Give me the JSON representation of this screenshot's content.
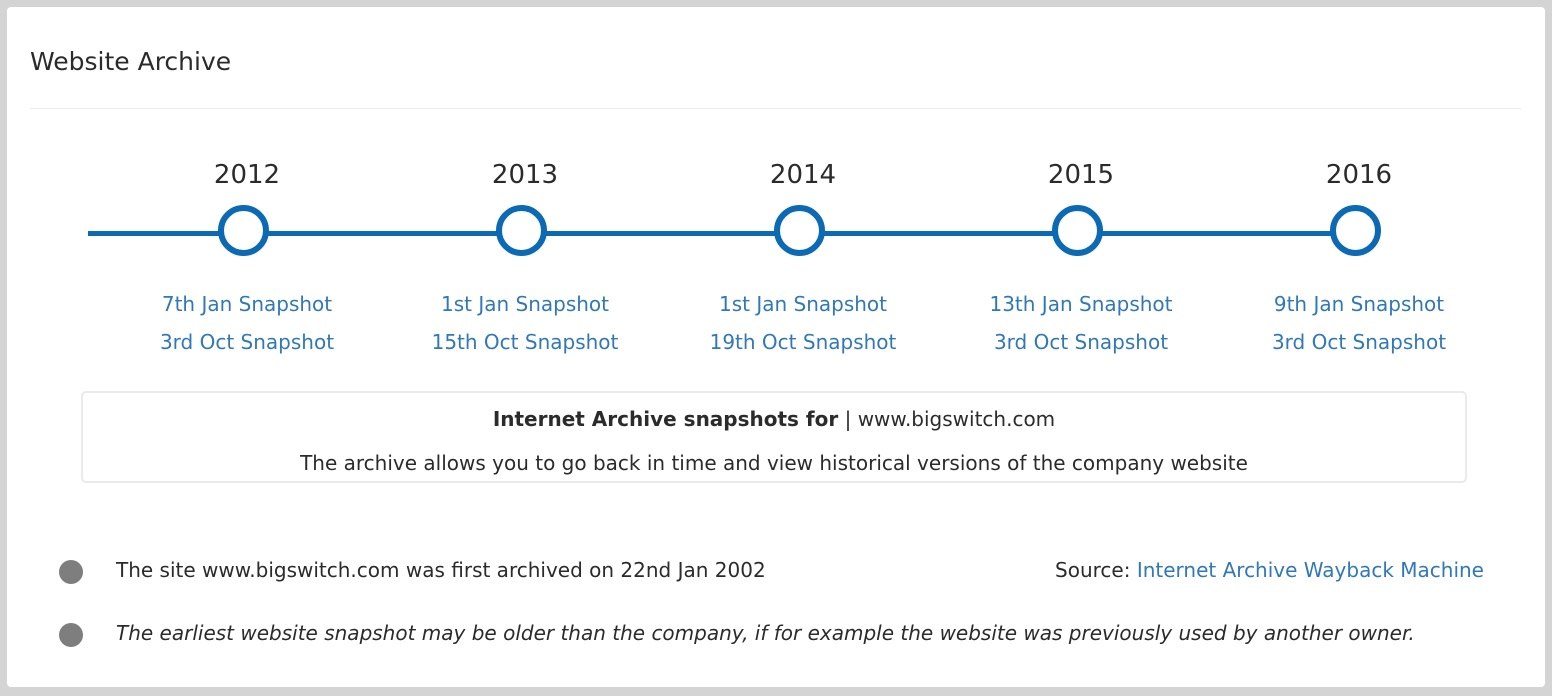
{
  "card": {
    "title": "Website Archive"
  },
  "timeline": {
    "years": [
      {
        "year": "2012",
        "snapshots": [
          "7th Jan Snapshot",
          "3rd Oct Snapshot"
        ]
      },
      {
        "year": "2013",
        "snapshots": [
          "1st Jan Snapshot",
          "15th Oct Snapshot"
        ]
      },
      {
        "year": "2014",
        "snapshots": [
          "1st Jan Snapshot",
          "19th Oct Snapshot"
        ]
      },
      {
        "year": "2015",
        "snapshots": [
          "13th Jan Snapshot",
          "3rd Oct Snapshot"
        ]
      },
      {
        "year": "2016",
        "snapshots": [
          "9th Jan Snapshot",
          "3rd Oct Snapshot"
        ]
      }
    ]
  },
  "info": {
    "bold_label": "Internet Archive snapshots for",
    "separator": "|",
    "domain": "www.bigswitch.com",
    "description": "The archive allows you to go back in time and view historical versions of the company website"
  },
  "notes": {
    "first_archived": "The site www.bigswitch.com was first archived on 22nd Jan 2002",
    "disclaimer": "The earliest website snapshot may be older than the company, if for example the website was previously used by another owner."
  },
  "source": {
    "label": "Source:",
    "link_text": "Internet Archive Wayback Machine"
  },
  "colors": {
    "timeline_blue": "#0c6ab4",
    "link_blue": "#3178b7",
    "bullet_grey": "#7e7e7e",
    "text": "#2b2b2b"
  }
}
